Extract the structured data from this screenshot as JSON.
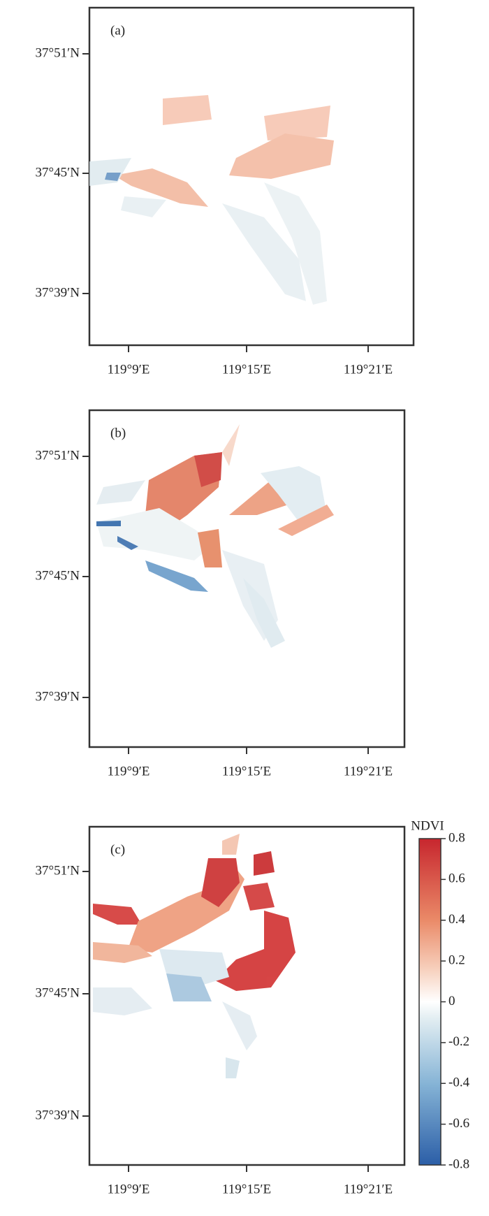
{
  "panels": [
    {
      "label": "(a)"
    },
    {
      "label": "(b)"
    },
    {
      "label": "(c)"
    }
  ],
  "x_ticks": [
    "119°9′E",
    "119°15′E",
    "119°21′E"
  ],
  "y_ticks": [
    "37°51′N",
    "37°45′N",
    "37°39′N"
  ],
  "colorbar": {
    "title": "NDVI",
    "lim": [
      -0.8,
      0.8
    ],
    "ticks": [
      0.8,
      0.6,
      0.4,
      0.2,
      0,
      -0.2,
      -0.4,
      -0.6,
      -0.8
    ]
  }
}
